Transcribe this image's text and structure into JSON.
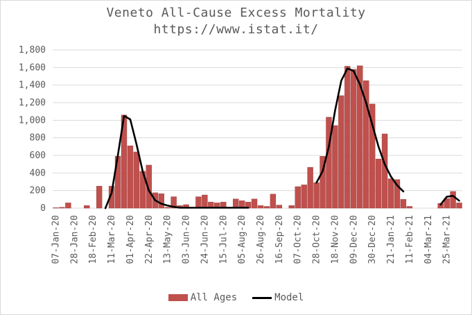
{
  "chart_data": {
    "type": "bar",
    "title": "Veneto All-Cause Excess Mortality",
    "subtitle": "https://www.istat.it/",
    "xlabel": "",
    "ylabel": "",
    "ylim": [
      0,
      1800
    ],
    "yticks": [
      0,
      200,
      400,
      600,
      800,
      1000,
      1200,
      1400,
      1600,
      1800
    ],
    "ytick_labels": [
      "0",
      "200",
      "400",
      "600",
      "800",
      "1,000",
      "1,200",
      "1,400",
      "1,600",
      "1,800"
    ],
    "x_tick_labels": [
      "07-Jan-20",
      "28-Jan-20",
      "18-Feb-20",
      "11-Mar-20",
      "01-Apr-20",
      "22-Apr-20",
      "13-May-20",
      "03-Jun-20",
      "24-Jun-20",
      "15-Jul-20",
      "05-Aug-20",
      "26-Aug-20",
      "16-Sep-20",
      "07-Oct-20",
      "28-Oct-20",
      "18-Nov-20",
      "09-Dec-20",
      "30-Dec-20",
      "21-Jan-21",
      "11-Feb-21",
      "04-Mar-21",
      "25-Mar-21"
    ],
    "series": [
      {
        "name": "All Ages",
        "kind": "bar",
        "color": "#c0504d",
        "values": [
          5,
          10,
          60,
          0,
          0,
          30,
          0,
          250,
          0,
          250,
          590,
          1060,
          710,
          640,
          420,
          490,
          175,
          165,
          10,
          130,
          30,
          40,
          10,
          130,
          150,
          70,
          60,
          70,
          10,
          105,
          85,
          70,
          105,
          30,
          20,
          160,
          35,
          0,
          30,
          245,
          265,
          465,
          290,
          590,
          1035,
          940,
          1280,
          1615,
          1580,
          1620,
          1450,
          1185,
          560,
          845,
          335,
          325,
          100,
          20,
          0,
          0,
          0,
          0,
          55,
          110,
          190,
          60
        ]
      },
      {
        "name": "Model",
        "kind": "line",
        "color": "#000000",
        "values": [
          null,
          null,
          null,
          null,
          null,
          null,
          null,
          null,
          0,
          175,
          600,
          1050,
          1010,
          730,
          420,
          200,
          90,
          50,
          30,
          15,
          5,
          5,
          5,
          5,
          5,
          5,
          5,
          5,
          5,
          5,
          5,
          5,
          null,
          null,
          null,
          null,
          null,
          null,
          null,
          null,
          null,
          null,
          290,
          420,
          700,
          1110,
          1450,
          1590,
          1560,
          1410,
          1200,
          950,
          700,
          500,
          360,
          260,
          190,
          null,
          null,
          null,
          null,
          null,
          40,
          130,
          140,
          85
        ]
      }
    ],
    "legend": [
      "All Ages",
      "Model"
    ],
    "legend_position": "bottom"
  }
}
